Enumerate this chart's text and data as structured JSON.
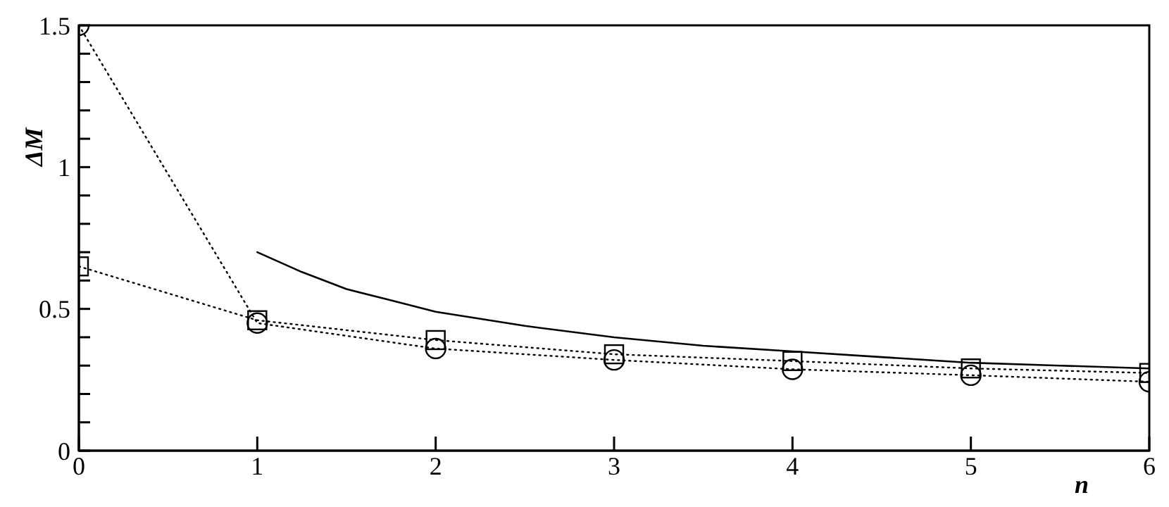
{
  "chart_data": {
    "type": "line",
    "xlabel": "n",
    "ylabel": "ΔM",
    "xlim": [
      0,
      6
    ],
    "ylim": [
      0,
      1.5
    ],
    "xticks": [
      0,
      1,
      2,
      3,
      4,
      5,
      6
    ],
    "yticks": [
      0,
      {
        "value": 0.1,
        "label": null
      },
      {
        "value": 0.2,
        "label": null
      },
      {
        "value": 0.3,
        "label": null
      },
      {
        "value": 0.4,
        "label": null
      },
      0.5,
      {
        "value": 0.6,
        "label": null
      },
      {
        "value": 0.7,
        "label": null
      },
      {
        "value": 0.8,
        "label": null
      },
      {
        "value": 0.9,
        "label": null
      },
      1,
      {
        "value": 1.1,
        "label": null
      },
      {
        "value": 1.2,
        "label": null
      },
      {
        "value": 1.3,
        "label": null
      },
      {
        "value": 1.4,
        "label": null
      },
      1.5
    ],
    "series": [
      {
        "color": "#000000",
        "marker": "circle",
        "line_style": "dotted",
        "x": [
          0,
          1,
          2,
          3,
          4,
          5,
          6
        ],
        "values": [
          1.5,
          0.45,
          0.36,
          0.32,
          0.287,
          0.266,
          0.243
        ]
      },
      {
        "color": "#000000",
        "marker": "square",
        "line_style": "dotted",
        "x": [
          0,
          1,
          2,
          3,
          4,
          5,
          6
        ],
        "values": [
          0.65,
          0.46,
          0.39,
          0.34,
          0.316,
          0.29,
          0.274
        ]
      },
      {
        "color": "#000000",
        "marker": "none",
        "line_style": "solid",
        "x": [
          1,
          1.25,
          1.5,
          1.75,
          2,
          2.5,
          3,
          3.5,
          4,
          4.5,
          5,
          5.5,
          6
        ],
        "values": [
          0.7,
          0.63,
          0.57,
          0.53,
          0.49,
          0.44,
          0.4,
          0.37,
          0.35,
          0.33,
          0.31,
          0.3,
          0.29
        ]
      }
    ]
  }
}
